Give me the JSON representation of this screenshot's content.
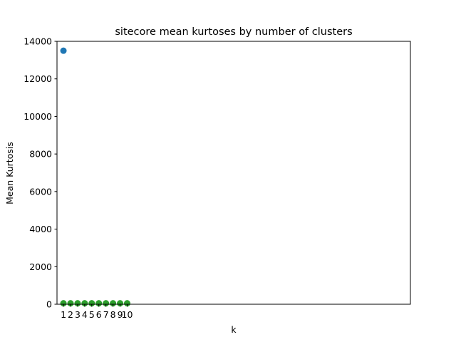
{
  "chart_data": {
    "type": "scatter",
    "title": "sitecore mean kurtoses by number of clusters",
    "xlabel": "k",
    "ylabel": "Mean Kurtosis",
    "ylim": [
      0,
      14000
    ],
    "yticks": [
      0,
      2000,
      4000,
      6000,
      8000,
      10000,
      12000,
      14000
    ],
    "xlim": [
      0.09,
      50.0
    ],
    "xticks": [
      1,
      2,
      3,
      4,
      5,
      6,
      7,
      8,
      9,
      10
    ],
    "xtick_labels": [
      "1",
      "2",
      "3",
      "4",
      "5",
      "6",
      "7",
      "8",
      "9",
      "10"
    ],
    "grid": false,
    "series": [
      {
        "color": "#1f77b4",
        "x": [
          1
        ],
        "y": [
          13500
        ]
      },
      {
        "color": "#2ca02c",
        "x": [
          1,
          2,
          3,
          4,
          5,
          6,
          7,
          8,
          9,
          10
        ],
        "y": [
          50,
          50,
          50,
          50,
          50,
          50,
          50,
          50,
          50,
          50
        ]
      }
    ]
  }
}
